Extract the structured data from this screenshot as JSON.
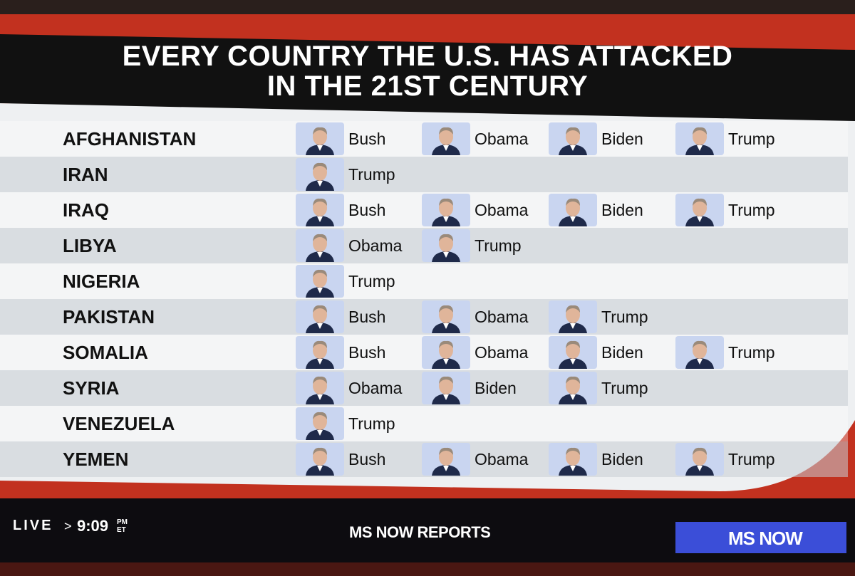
{
  "header": {
    "title_line1": "EVERY COUNTRY THE U.S. HAS ATTACKED",
    "title_line2": "IN THE 21ST CENTURY"
  },
  "table": {
    "rows": [
      {
        "country": "AFGHANISTAN",
        "presidents": [
          "Bush",
          "Obama",
          "Biden",
          "Trump"
        ]
      },
      {
        "country": "IRAN",
        "presidents": [
          "Trump"
        ]
      },
      {
        "country": "IRAQ",
        "presidents": [
          "Bush",
          "Obama",
          "Biden",
          "Trump"
        ]
      },
      {
        "country": "LIBYA",
        "presidents": [
          "Obama",
          "Trump"
        ]
      },
      {
        "country": "NIGERIA",
        "presidents": [
          "Trump"
        ]
      },
      {
        "country": "PAKISTAN",
        "presidents": [
          "Bush",
          "Obama",
          "Trump"
        ]
      },
      {
        "country": "SOMALIA",
        "presidents": [
          "Bush",
          "Obama",
          "Biden",
          "Trump"
        ]
      },
      {
        "country": "SYRIA",
        "presidents": [
          "Obama",
          "Biden",
          "Trump"
        ]
      },
      {
        "country": "VENEZUELA",
        "presidents": [
          "Trump"
        ]
      },
      {
        "country": "YEMEN",
        "presidents": [
          "Bush",
          "Obama",
          "Biden",
          "Trump"
        ]
      }
    ]
  },
  "footer": {
    "live": "LIVE",
    "separator": ">",
    "time": "9:09",
    "time_suffix_top": "PM",
    "time_suffix_bottom": "ET",
    "show": "MS NOW REPORTS",
    "logo": "MS NOW"
  }
}
